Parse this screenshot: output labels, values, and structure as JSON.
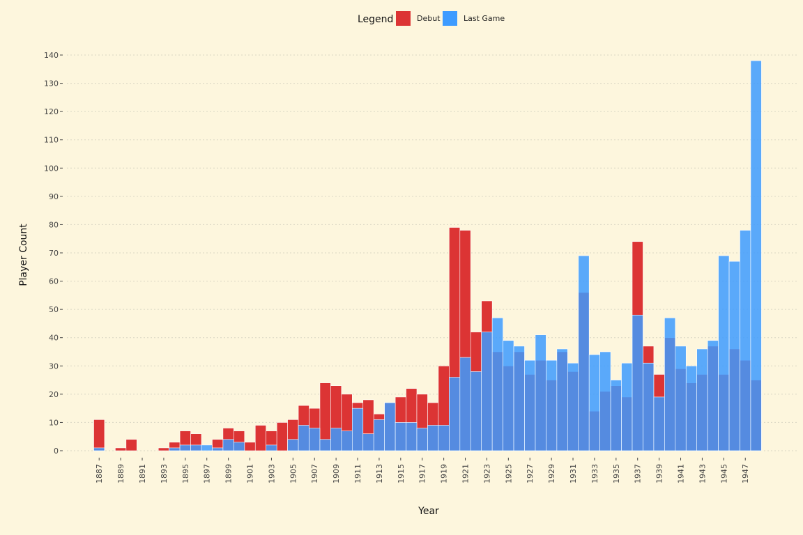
{
  "chart_data": {
    "type": "bar",
    "title": "",
    "xlabel": "Year",
    "ylabel": "Player Count",
    "ylim": [
      0,
      140
    ],
    "yticks": [
      0,
      10,
      20,
      30,
      40,
      50,
      60,
      70,
      80,
      90,
      100,
      110,
      120,
      130,
      140
    ],
    "grid": "horizontal dotted",
    "legend": {
      "title": "Legend",
      "placement": "top-center",
      "entries": [
        "Debut",
        "Last Game"
      ]
    },
    "colors": {
      "debut": "#dc3434",
      "last_game": "#3d9bff",
      "background": "#fdf6dd"
    },
    "x": [
      1887,
      1888,
      1889,
      1890,
      1891,
      1892,
      1893,
      1894,
      1895,
      1896,
      1897,
      1898,
      1899,
      1900,
      1901,
      1902,
      1903,
      1904,
      1905,
      1906,
      1907,
      1908,
      1909,
      1910,
      1911,
      1912,
      1913,
      1914,
      1915,
      1916,
      1917,
      1918,
      1919,
      1920,
      1921,
      1922,
      1923,
      1924,
      1925,
      1926,
      1927,
      1928,
      1929,
      1930,
      1931,
      1932,
      1933,
      1934,
      1935,
      1936,
      1937,
      1938,
      1939,
      1940,
      1941,
      1942,
      1943,
      1944,
      1945,
      1946,
      1947,
      1948
    ],
    "x_tick_labels": [
      "1887",
      "1889",
      "1891",
      "1893",
      "1895",
      "1897",
      "1899",
      "1901",
      "1903",
      "1905",
      "1907",
      "1909",
      "1911",
      "1913",
      "1915",
      "1917",
      "1919",
      "1921",
      "1923",
      "1925",
      "1927",
      "1929",
      "1931",
      "1933",
      "1935",
      "1937",
      "1939",
      "1941",
      "1943",
      "1945",
      "1947"
    ],
    "series": [
      {
        "name": "Debut",
        "values": [
          11,
          0,
          1,
          4,
          0,
          0,
          1,
          3,
          7,
          6,
          0,
          4,
          8,
          7,
          3,
          9,
          7,
          10,
          11,
          16,
          15,
          24,
          23,
          20,
          17,
          18,
          13,
          17,
          19,
          22,
          20,
          17,
          30,
          79,
          78,
          42,
          53,
          35,
          30,
          35,
          27,
          32,
          25,
          35,
          28,
          56,
          14,
          21,
          23,
          19,
          74,
          37,
          27,
          40,
          29,
          24,
          27,
          37,
          27,
          36,
          32,
          25
        ]
      },
      {
        "name": "Last Game",
        "values": [
          1,
          0,
          0,
          0,
          0,
          0,
          0,
          1,
          2,
          2,
          2,
          1,
          4,
          3,
          0,
          0,
          2,
          0,
          4,
          9,
          8,
          4,
          8,
          7,
          15,
          6,
          11,
          17,
          10,
          10,
          8,
          9,
          9,
          26,
          33,
          28,
          42,
          47,
          39,
          37,
          32,
          41,
          32,
          36,
          31,
          69,
          34,
          35,
          25,
          31,
          48,
          31,
          19,
          47,
          37,
          30,
          36,
          39,
          69,
          67,
          78,
          138
        ]
      }
    ]
  }
}
